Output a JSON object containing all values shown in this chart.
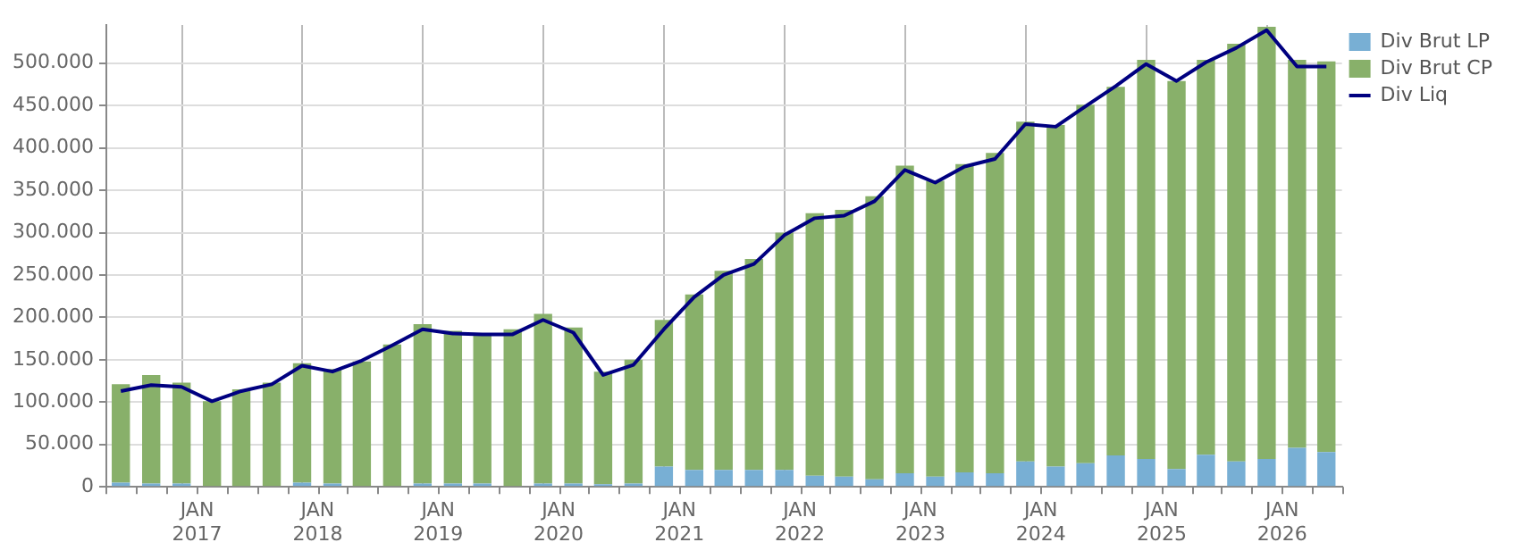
{
  "chart_data": {
    "type": "bar",
    "stacked": true,
    "grid": true,
    "legend": "top right",
    "line_style": "solid",
    "x": [
      "2016-05-15",
      "2016-08-15",
      "2016-11-15",
      "2017-02-15",
      "2017-05-15",
      "2017-08-15",
      "2017-11-15",
      "2018-02-15",
      "2018-05-15",
      "2018-08-15",
      "2018-11-15",
      "2019-02-15",
      "2019-05-15",
      "2019-08-15",
      "2019-11-15",
      "2020-02-15",
      "2020-05-15",
      "2020-08-15",
      "2020-11-15",
      "2021-02-15",
      "2021-05-15",
      "2021-08-15",
      "2021-11-15",
      "2022-02-15",
      "2022-05-15",
      "2022-08-15",
      "2022-11-15",
      "2023-02-15",
      "2023-05-15",
      "2023-08-15",
      "2023-11-15",
      "2024-02-15",
      "2024-05-15",
      "2024-08-15",
      "2024-11-15",
      "2025-02-15",
      "2025-05-15",
      "2025-08-15",
      "2025-11-15",
      "2026-02-15",
      "2026-05-15"
    ],
    "series": [
      {
        "name": "Div Brut LP",
        "color": "#78afd4",
        "values": [
          5000,
          4000,
          4000,
          0,
          0,
          0,
          5000,
          4000,
          0,
          0,
          4000,
          4000,
          4000,
          0,
          4000,
          4000,
          3000,
          4000,
          24000,
          20000,
          20000,
          20000,
          20000,
          13000,
          12000,
          9000,
          16000,
          12000,
          17000,
          16000,
          30000,
          24000,
          28000,
          37000,
          33000,
          21000,
          38000,
          30000,
          33000,
          46000,
          41000
        ]
      },
      {
        "name": "Div Brut CP",
        "color": "#88b06a",
        "values": [
          116000,
          128000,
          119000,
          101000,
          115000,
          123000,
          141000,
          135000,
          148000,
          168000,
          188000,
          180000,
          176000,
          186000,
          200000,
          184000,
          133000,
          146000,
          173000,
          207000,
          235000,
          249000,
          280000,
          310000,
          315000,
          334000,
          363000,
          349000,
          364000,
          378000,
          401000,
          403000,
          423000,
          435000,
          471000,
          458000,
          466000,
          493000,
          510000,
          458000,
          461000
        ]
      },
      {
        "name": "Div Liq",
        "type": "line",
        "color": "#000080",
        "values": [
          113000,
          120000,
          118000,
          101000,
          113000,
          121000,
          143000,
          136000,
          149000,
          167000,
          186000,
          181000,
          180000,
          180000,
          197000,
          182000,
          132000,
          144000,
          186000,
          224000,
          250000,
          263000,
          297000,
          317000,
          320000,
          337000,
          374000,
          359000,
          378000,
          387000,
          428000,
          425000,
          449000,
          473000,
          499000,
          479000,
          501000,
          518000,
          539000,
          496000,
          496000
        ]
      }
    ],
    "xlim": [
      "2016-04-01",
      "2026-07-01"
    ],
    "xticks": [
      {
        "value": "2016-04",
        "label": null
      },
      {
        "value": "2016-07",
        "label": null
      },
      {
        "value": "2016-10",
        "label": null
      },
      {
        "value": "2017-01",
        "label": "JAN 2017"
      },
      {
        "value": "2017-04",
        "label": null
      },
      {
        "value": "2017-07",
        "label": null
      },
      {
        "value": "2017-10",
        "label": null
      },
      {
        "value": "2018-01",
        "label": "JAN 2018"
      },
      {
        "value": "2018-04",
        "label": null
      },
      {
        "value": "2018-07",
        "label": null
      },
      {
        "value": "2018-10",
        "label": null
      },
      {
        "value": "2019-01",
        "label": "JAN 2019"
      },
      {
        "value": "2019-04",
        "label": null
      },
      {
        "value": "2019-07",
        "label": null
      },
      {
        "value": "2019-10",
        "label": null
      },
      {
        "value": "2020-01",
        "label": "JAN 2020"
      },
      {
        "value": "2020-04",
        "label": null
      },
      {
        "value": "2020-07",
        "label": null
      },
      {
        "value": "2020-10",
        "label": null
      },
      {
        "value": "2021-01",
        "label": "JAN 2021"
      },
      {
        "value": "2021-04",
        "label": null
      },
      {
        "value": "2021-07",
        "label": null
      },
      {
        "value": "2021-10",
        "label": null
      },
      {
        "value": "2022-01",
        "label": "JAN 2022"
      },
      {
        "value": "2022-04",
        "label": null
      },
      {
        "value": "2022-07",
        "label": null
      },
      {
        "value": "2022-10",
        "label": null
      },
      {
        "value": "2023-01",
        "label": "JAN 2023"
      },
      {
        "value": "2023-04",
        "label": null
      },
      {
        "value": "2023-07",
        "label": null
      },
      {
        "value": "2023-10",
        "label": null
      },
      {
        "value": "2024-01",
        "label": "JAN 2024"
      },
      {
        "value": "2024-04",
        "label": null
      },
      {
        "value": "2024-07",
        "label": null
      },
      {
        "value": "2024-10",
        "label": null
      },
      {
        "value": "2025-01",
        "label": "JAN 2025"
      },
      {
        "value": "2025-04",
        "label": null
      },
      {
        "value": "2025-07",
        "label": null
      },
      {
        "value": "2025-10",
        "label": null
      },
      {
        "value": "2026-01",
        "label": "JAN 2026"
      },
      {
        "value": "2026-04",
        "label": null
      },
      {
        "value": "2026-07",
        "label": null
      }
    ],
    "ylim": [
      0,
      545000
    ],
    "yticks": [
      {
        "value": 0,
        "label": "0"
      },
      {
        "value": 50000,
        "label": "50.000"
      },
      {
        "value": 100000,
        "label": "100.000"
      },
      {
        "value": 150000,
        "label": "150.000"
      },
      {
        "value": 200000,
        "label": "200.000"
      },
      {
        "value": 250000,
        "label": "250.000"
      },
      {
        "value": 300000,
        "label": "300.000"
      },
      {
        "value": 350000,
        "label": "350.000"
      },
      {
        "value": 400000,
        "label": "400.000"
      },
      {
        "value": 450000,
        "label": "450.000"
      },
      {
        "value": 500000,
        "label": "500.000"
      }
    ]
  }
}
